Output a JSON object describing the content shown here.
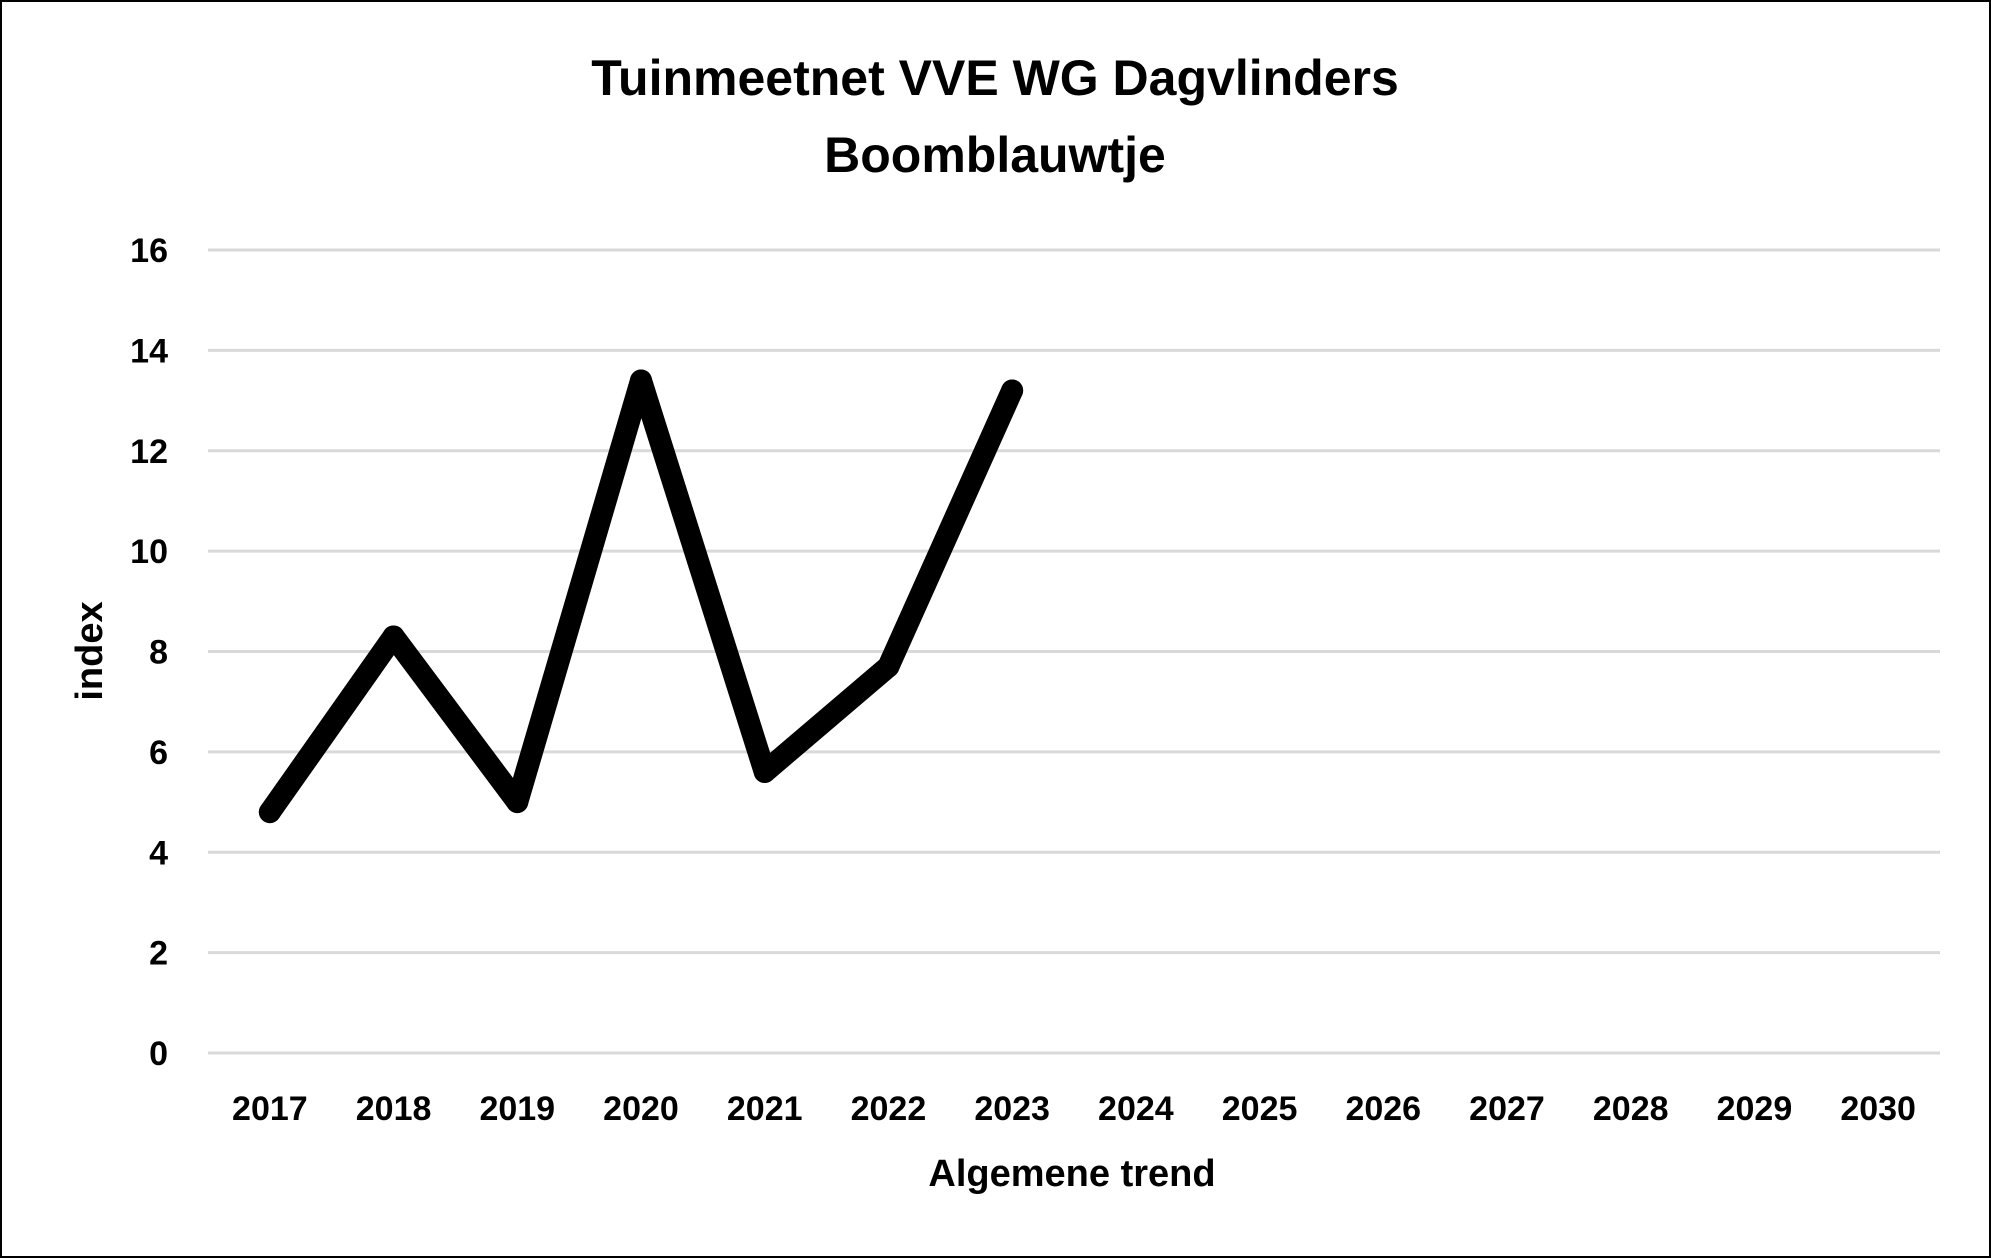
{
  "chart_data": {
    "type": "line",
    "title": "Tuinmeetnet VVE WG Dagvlinders",
    "subtitle": "Boomblauwtje",
    "xlabel": "Algemene trend",
    "ylabel": "index",
    "categories": [
      "2017",
      "2018",
      "2019",
      "2020",
      "2021",
      "2022",
      "2023",
      "2024",
      "2025",
      "2026",
      "2027",
      "2028",
      "2029",
      "2030"
    ],
    "series": [
      {
        "values": [
          4.8,
          8.3,
          5.0,
          13.4,
          5.6,
          7.7,
          13.2,
          null,
          null,
          null,
          null,
          null,
          null,
          null
        ]
      }
    ],
    "ylim": [
      0,
      16
    ],
    "yticks": [
      0,
      2,
      4,
      6,
      8,
      10,
      12,
      14,
      16
    ],
    "grid": true,
    "legend": "none",
    "colors": {
      "line": "#000000",
      "grid": "#d9d9d9",
      "background": "#ffffff"
    }
  }
}
